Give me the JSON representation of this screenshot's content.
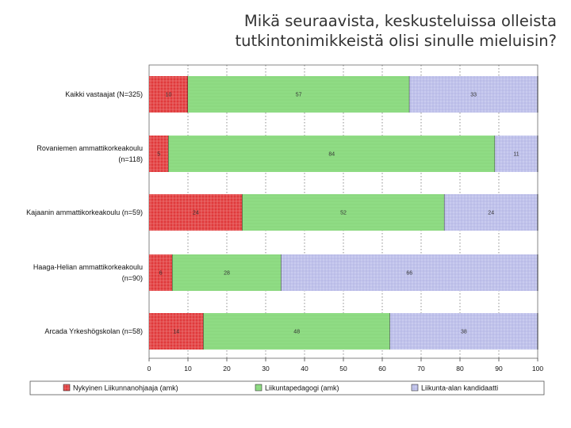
{
  "title": {
    "line1": "Mikä seuraavista, keskusteluissa olleista",
    "line2": "tutkintonimikkeistä olisi sinulle mieluisin?"
  },
  "chart_data": {
    "type": "bar",
    "orientation": "horizontal",
    "stacked": true,
    "title": "Mikä seuraavista, keskusteluissa olleista tutkintonimikkeistä olisi sinulle mieluisin?",
    "categories": [
      [
        "Kaikki vastaajat (N=325)"
      ],
      [
        "Rovaniemen ammattikorkeakoulu",
        "(n=118)"
      ],
      [
        "Kajaanin ammattikorkeakoulu (n=59)"
      ],
      [
        "Haaga-Helian ammattikorkeakoulu",
        "(n=90)"
      ],
      [
        "Arcada Yrkeshögskolan (n=58)"
      ]
    ],
    "series": [
      {
        "name": "Nykyinen Liikunnanohjaaja (amk)",
        "color": "#e0393b",
        "values": [
          10,
          5,
          24,
          6,
          14
        ]
      },
      {
        "name": "Liikuntapedagogi (amk)",
        "color": "#8fdc84",
        "values": [
          57,
          84,
          52,
          28,
          48
        ]
      },
      {
        "name": "Liikunta-alan kandidaatti",
        "color": "#c7c9ee",
        "values": [
          33,
          11,
          24,
          66,
          38
        ]
      }
    ],
    "xlim": [
      0,
      100
    ],
    "xticks": [
      0,
      10,
      20,
      30,
      40,
      50,
      60,
      70,
      80,
      90,
      100
    ],
    "grid": true,
    "legend_position": "bottom"
  }
}
